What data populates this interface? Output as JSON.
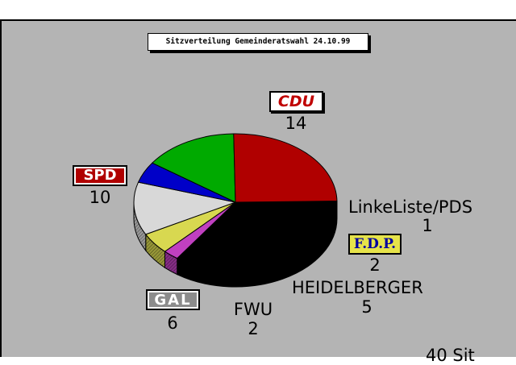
{
  "chart_data": {
    "type": "pie",
    "title": "Sitzverteilung Gemeinderatswahl 24.10.99",
    "slices": [
      {
        "name": "CDU",
        "value": 14,
        "color": "#000000"
      },
      {
        "name": "LinkeListe/PDS",
        "value": 1,
        "color": "#c040c0"
      },
      {
        "name": "F.D.P.",
        "value": 2,
        "color": "#d8d850"
      },
      {
        "name": "HEIDELBERGER",
        "value": 5,
        "color": "#d8d8d8"
      },
      {
        "name": "FWU",
        "value": 2,
        "color": "#0000c8"
      },
      {
        "name": "GAL",
        "value": 6,
        "color": "#00aa00"
      },
      {
        "name": "SPD",
        "value": 10,
        "color": "#b00000"
      }
    ],
    "footer_fragment": "40 Sit"
  }
}
